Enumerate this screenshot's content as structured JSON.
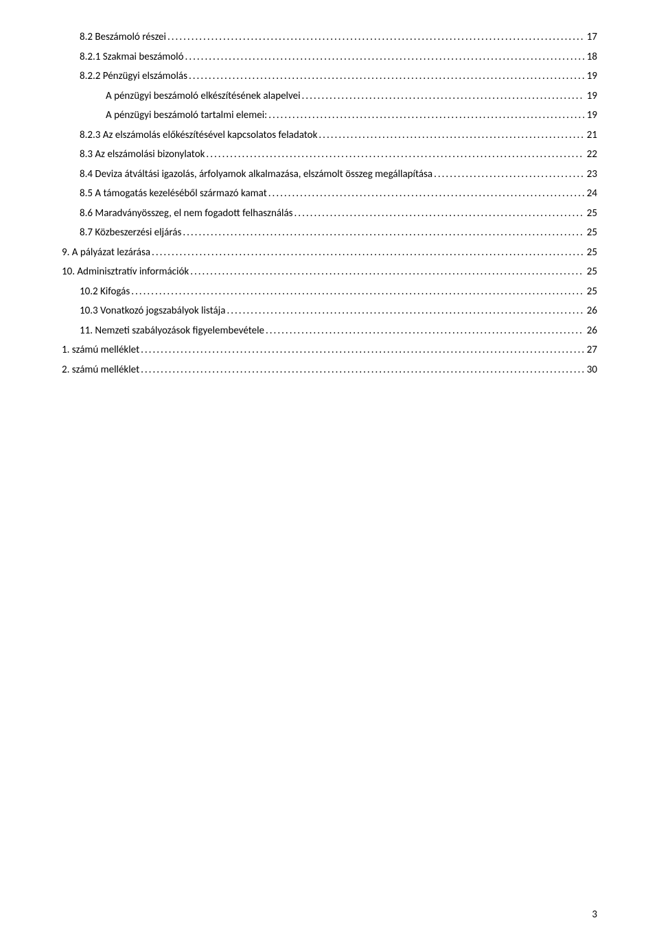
{
  "toc": {
    "entries": [
      {
        "label": "8.2 Beszámoló részei",
        "page": "17",
        "indent": 1
      },
      {
        "label": "8.2.1 Szakmai beszámoló",
        "page": "18",
        "indent": 1
      },
      {
        "label": "8.2.2 Pénzügyi elszámolás",
        "page": "19",
        "indent": 1
      },
      {
        "label": "A pénzügyi beszámoló elkészítésének alapelvei",
        "page": "19",
        "indent": 2
      },
      {
        "label": "A pénzügyi beszámoló tartalmi elemei:",
        "page": "19",
        "indent": 2
      },
      {
        "label": "8.2.3 Az elszámolás előkészítésével kapcsolatos feladatok",
        "page": "21",
        "indent": 1
      },
      {
        "label": "8.3 Az elszámolási bizonylatok",
        "page": "22",
        "indent": 1
      },
      {
        "label": "8.4 Deviza átváltási igazolás, árfolyamok alkalmazása, elszámolt összeg megállapítása",
        "page": "23",
        "indent": 1
      },
      {
        "label": "8.5 A támogatás kezeléséből származó kamat",
        "page": "24",
        "indent": 1
      },
      {
        "label": "8.6 Maradványösszeg, el nem fogadott felhasználás",
        "page": "25",
        "indent": 1
      },
      {
        "label": "8.7 Közbeszerzési eljárás",
        "page": "25",
        "indent": 1
      },
      {
        "label": "9. A pályázat lezárása",
        "page": "25",
        "indent": 0
      },
      {
        "label": "10. Adminisztratív információk",
        "page": "25",
        "indent": 0
      },
      {
        "label": "10.2 Kifogás",
        "page": "25",
        "indent": 1
      },
      {
        "label": "10.3 Vonatkozó jogszabályok listája",
        "page": "26",
        "indent": 1
      },
      {
        "label": "11. Nemzeti szabályozások figyelembevétele",
        "page": "26",
        "indent": 1
      },
      {
        "label": "1. számú melléklet",
        "page": "27",
        "indent": 0
      },
      {
        "label": "2. számú melléklet",
        "page": "30",
        "indent": 0
      }
    ]
  },
  "pageNumber": "3"
}
